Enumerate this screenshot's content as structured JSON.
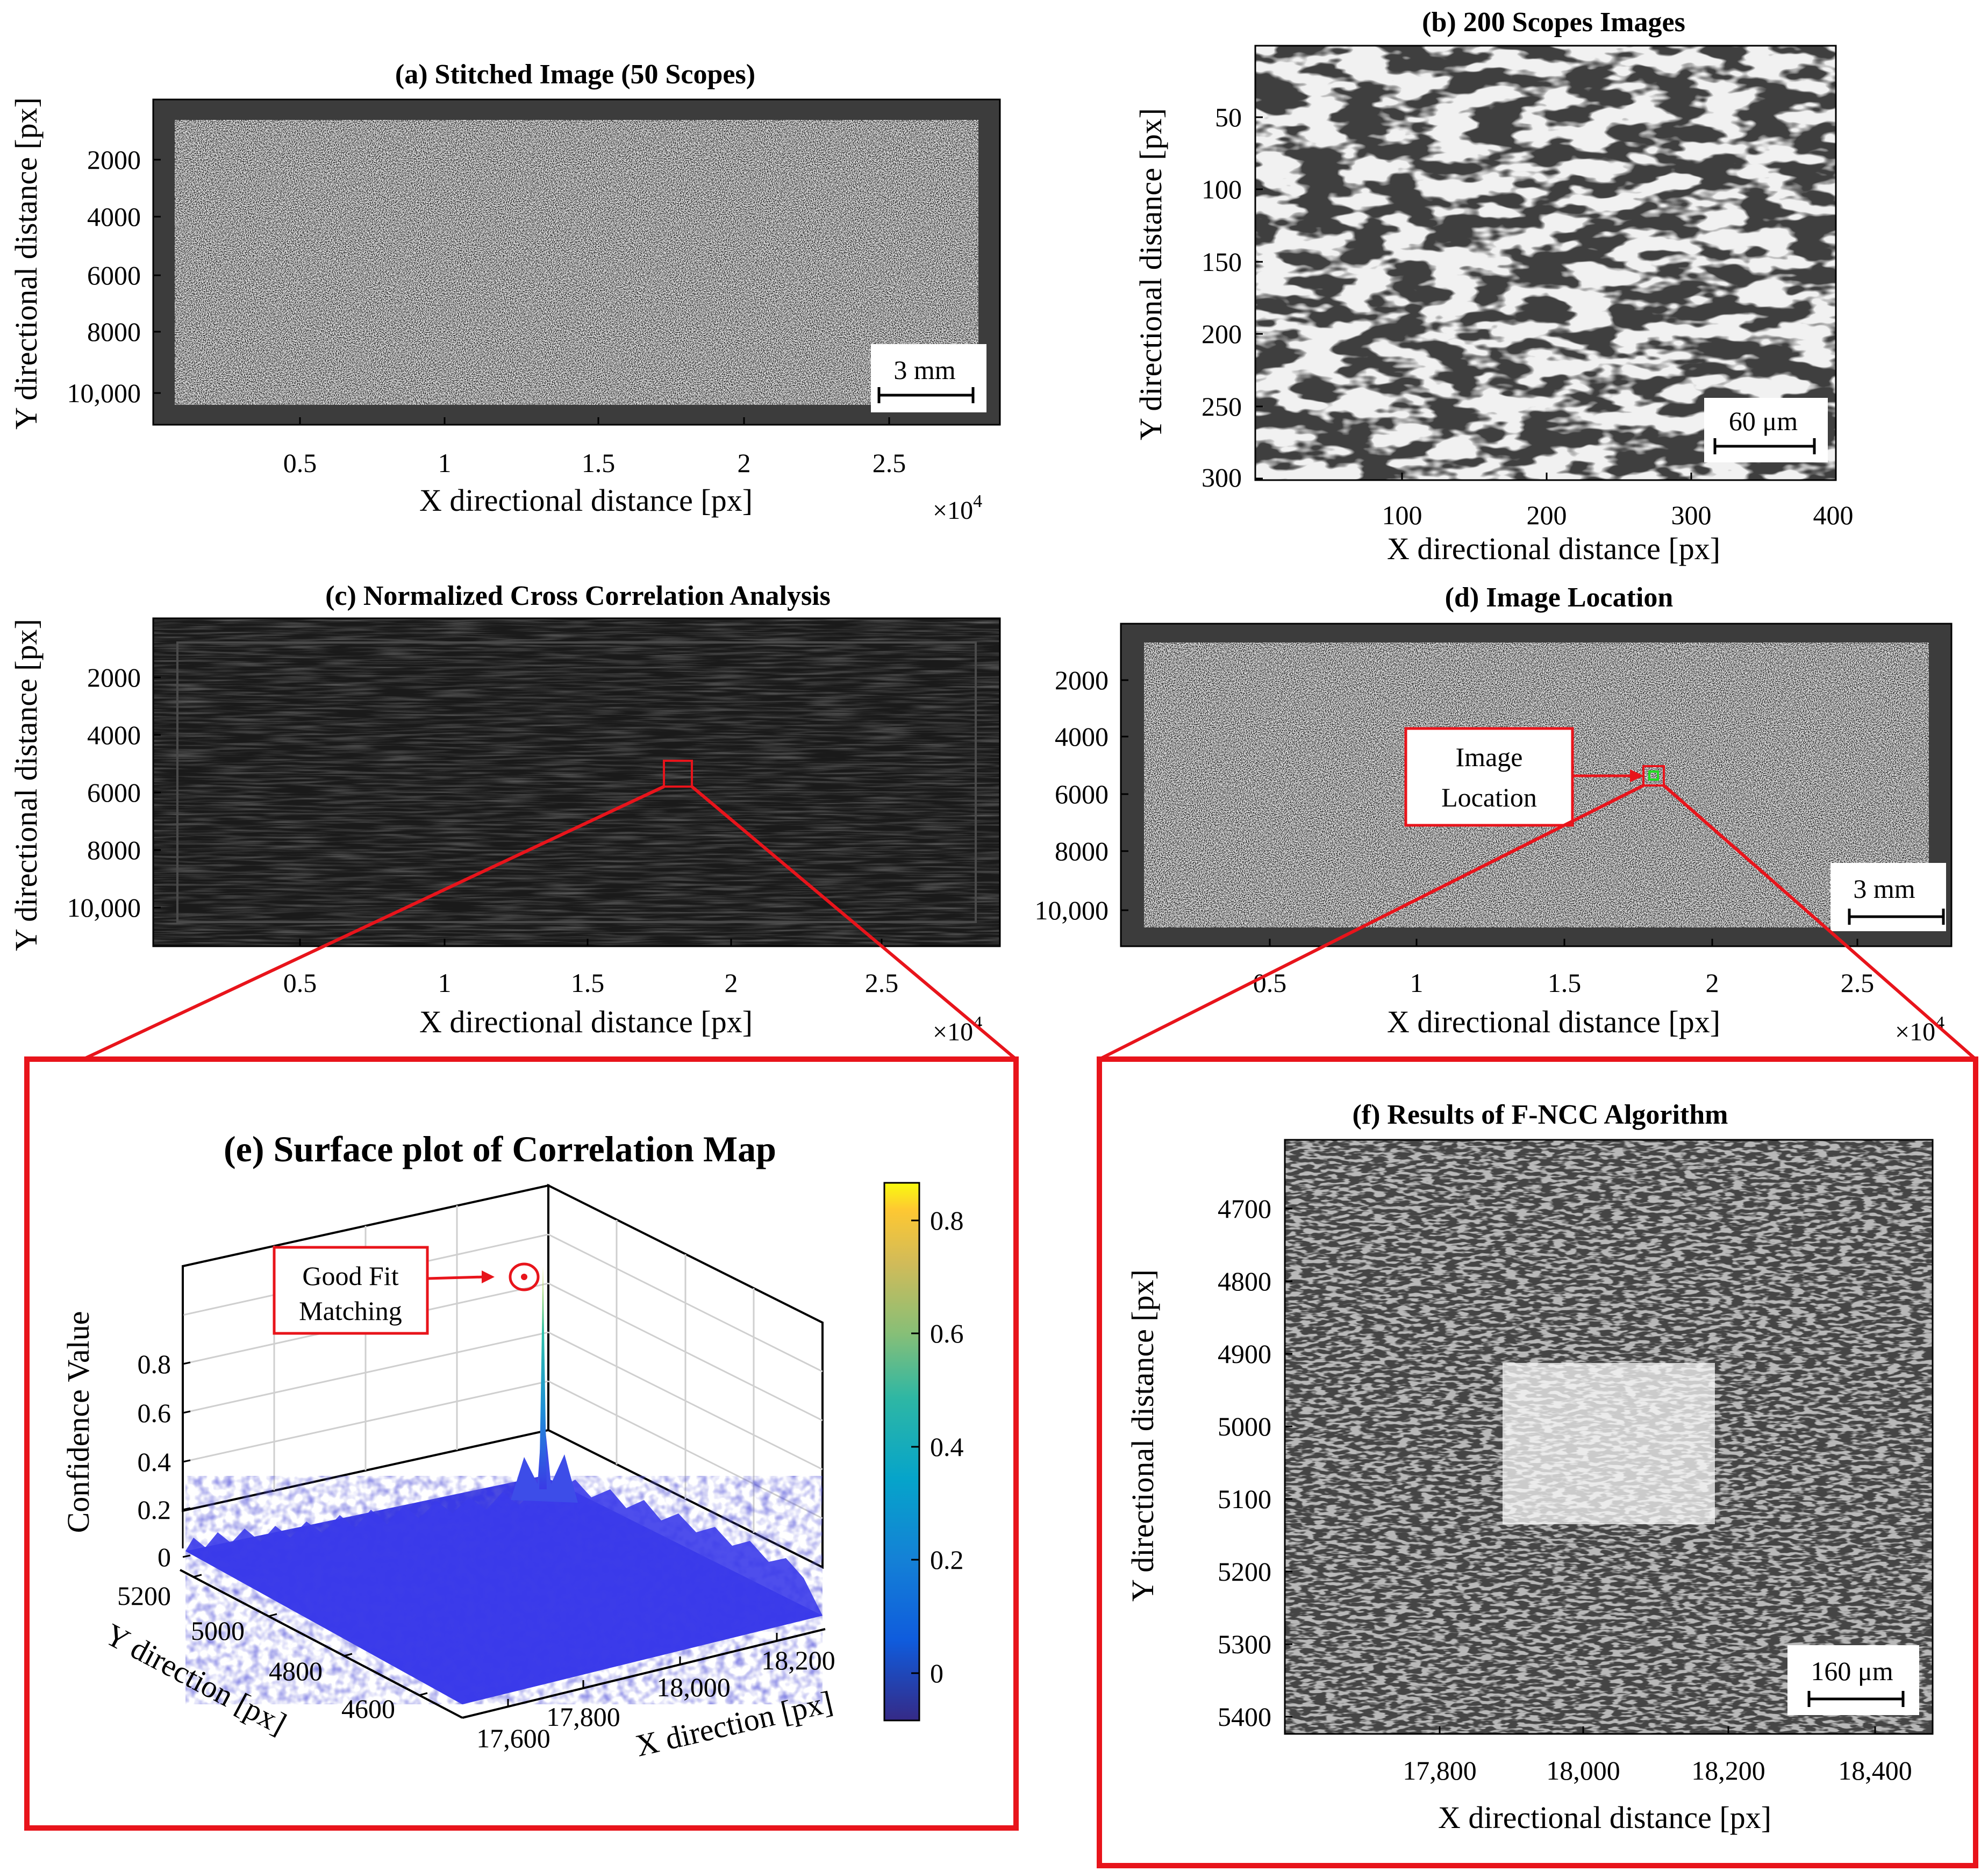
{
  "panels": {
    "a": {
      "title": "(a) Stitched Image (50 Scopes)",
      "xlabel": "X directional distance [px]",
      "ylabel": "Y directional distance [px]",
      "xticks": [
        "0.5",
        "1",
        "1.5",
        "2",
        "2.5"
      ],
      "yticks": [
        "2000",
        "4000",
        "6000",
        "8000",
        "10,000"
      ],
      "xmultiplier": "×10",
      "xmultiplier_exp": "4",
      "scalebar": "3 mm"
    },
    "b": {
      "title": "(b) 200 Scopes Images",
      "xlabel": "X directional distance [px]",
      "ylabel": "Y directional distance [px]",
      "xticks": [
        "100",
        "200",
        "300",
        "400"
      ],
      "yticks": [
        "50",
        "100",
        "150",
        "200",
        "250",
        "300"
      ],
      "scalebar": "60 μm"
    },
    "c": {
      "title": "(c) Normalized Cross Correlation Analysis",
      "xlabel": "X directional distance [px]",
      "ylabel": "Y directional distance [px]",
      "xticks": [
        "0.5",
        "1",
        "1.5",
        "2",
        "2.5"
      ],
      "yticks": [
        "2000",
        "4000",
        "6000",
        "8000",
        "10,000"
      ],
      "xmultiplier": "×10",
      "xmultiplier_exp": "4"
    },
    "d": {
      "title": "(d) Image Location",
      "xlabel": "X directional distance [px]",
      "ylabel": "",
      "xticks": [
        "0.5",
        "1",
        "1.5",
        "2",
        "2.5"
      ],
      "yticks": [
        "2000",
        "4000",
        "6000",
        "8000",
        "10,000"
      ],
      "xmultiplier": "×10",
      "xmultiplier_exp": "4",
      "scalebar": "3 mm",
      "annotation_line1": "Image",
      "annotation_line2": "Location"
    },
    "e": {
      "title": "(e) Surface plot of Correlation Map",
      "zlabel": "Confidence Value",
      "xlabel": "X direction [px]",
      "ylabel": "Y direction [px]",
      "zticks": [
        "0",
        "0.2",
        "0.4",
        "0.6",
        "0.8"
      ],
      "xticks": [
        "17,600",
        "17,800",
        "18,000",
        "18,200"
      ],
      "yticks": [
        "4600",
        "4800",
        "5000",
        "5200"
      ],
      "colorbar_ticks": [
        "0",
        "0.2",
        "0.4",
        "0.6",
        "0.8"
      ],
      "annotation_line1": "Good Fit",
      "annotation_line2": "Matching"
    },
    "f": {
      "title": "(f) Results of F-NCC Algorithm",
      "xlabel": "X directional distance [px]",
      "ylabel": "Y directional distance [px]",
      "xticks": [
        "17,800",
        "18,000",
        "18,200",
        "18,400"
      ],
      "yticks": [
        "4700",
        "4800",
        "4900",
        "5000",
        "5100",
        "5200",
        "5300",
        "5400"
      ],
      "scalebar": "160 μm"
    }
  },
  "colors": {
    "accent": "#e8141b",
    "match_box": "#22dd22",
    "surface": "#3a3ae6",
    "peak": "#28c8b8"
  },
  "chart_data": [
    {
      "type": "heatmap",
      "title": "(a) Stitched Image (50 Scopes)",
      "xlabel": "X directional distance [px]",
      "ylabel": "Y directional distance [px]",
      "xlim": [
        0,
        29000
      ],
      "ylim": [
        11000,
        0
      ]
    },
    {
      "type": "heatmap",
      "title": "(b) 200 Scopes Images",
      "xlabel": "X directional distance [px]",
      "ylabel": "Y directional distance [px]",
      "xlim": [
        0,
        400
      ],
      "ylim": [
        300,
        0
      ]
    },
    {
      "type": "heatmap",
      "title": "(c) Normalized Cross Correlation Analysis",
      "xlabel": "X directional distance [px]",
      "ylabel": "Y directional distance [px]",
      "xlim": [
        0,
        29000
      ],
      "ylim": [
        11000,
        0
      ],
      "highlight": {
        "x": 18100,
        "y": 5400
      }
    },
    {
      "type": "heatmap",
      "title": "(d) Image Location",
      "xlabel": "X directional distance [px]",
      "xlim": [
        0,
        29000
      ],
      "ylim": [
        11000,
        0
      ],
      "highlight": {
        "x": 18100,
        "y": 5400
      }
    },
    {
      "type": "surface",
      "title": "(e) Surface plot of Correlation Map",
      "xlabel": "X direction [px]",
      "ylabel": "Y direction [px]",
      "zlabel": "Confidence Value",
      "xlim": [
        17500,
        18300
      ],
      "ylim": [
        4500,
        5250
      ],
      "zlim": [
        -0.05,
        0.9
      ],
      "peak": {
        "x": 18080,
        "y": 5000,
        "z": 0.88
      },
      "baseline": 0.0
    },
    {
      "type": "heatmap",
      "title": "(f) Results of F-NCC Algorithm",
      "xlabel": "X directional distance [px]",
      "ylabel": "Y directional distance [px]",
      "xlim": [
        17620,
        18500
      ],
      "ylim": [
        5420,
        4620
      ],
      "matched_region": {
        "x": [
          17920,
          18210
        ],
        "y": [
          4910,
          5130
        ]
      }
    }
  ]
}
